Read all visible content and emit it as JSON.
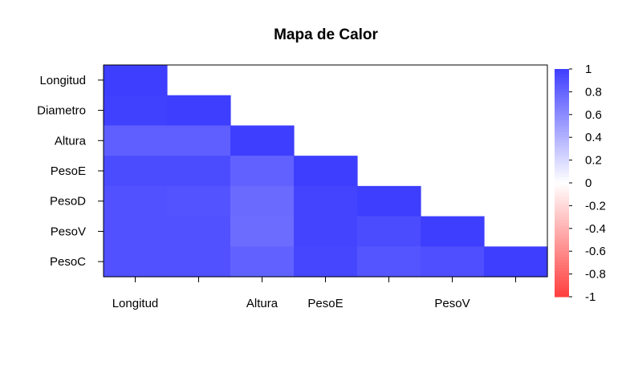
{
  "chart_data": {
    "type": "heatmap",
    "title": "Mapa de Calor",
    "rows": [
      "Longitud",
      "Diametro",
      "Altura",
      "PesoE",
      "PesoD",
      "PesoV",
      "PesoC"
    ],
    "columns": [
      "Longitud",
      "Diametro",
      "Altura",
      "PesoE",
      "PesoD",
      "PesoV",
      "PesoC"
    ],
    "x_tick_labels": [
      "Longitud",
      "",
      "Altura",
      "PesoE",
      "",
      "PesoV",
      ""
    ],
    "values": [
      [
        1.0,
        null,
        null,
        null,
        null,
        null,
        null
      ],
      [
        0.99,
        1.0,
        null,
        null,
        null,
        null,
        null
      ],
      [
        0.83,
        0.83,
        1.0,
        null,
        null,
        null,
        null
      ],
      [
        0.93,
        0.93,
        0.82,
        1.0,
        null,
        null,
        null
      ],
      [
        0.9,
        0.89,
        0.77,
        0.97,
        1.0,
        null,
        null
      ],
      [
        0.9,
        0.9,
        0.76,
        0.97,
        0.93,
        1.0,
        null
      ],
      [
        0.9,
        0.9,
        0.82,
        0.96,
        0.88,
        0.91,
        1.0
      ]
    ],
    "color_scale": {
      "min": -1,
      "max": 1,
      "low_color": "#ff3e3e",
      "mid_color": "#ffffff",
      "high_color": "#3e3eff",
      "ticks": [
        "1",
        "0.8",
        "0.6",
        "0.4",
        "0.2",
        "0",
        "-0.2",
        "-0.4",
        "-0.6",
        "-0.8",
        "-1"
      ]
    },
    "legend_position": "right"
  }
}
